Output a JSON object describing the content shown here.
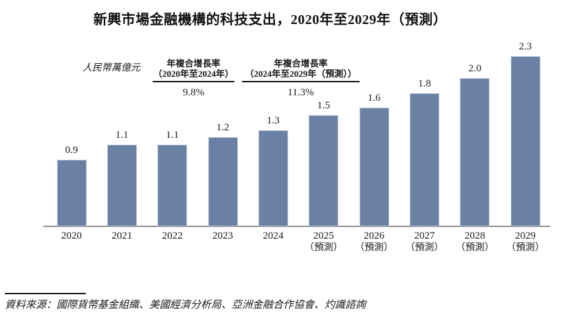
{
  "page": {
    "title": "新興市場金融機構的科技支出，2020年至2029年（預測）",
    "source": "資料來源：國際貨幣基金組織、美國經濟分析局、亞洲金融合作協會、灼識諮詢"
  },
  "chart_data": {
    "type": "bar",
    "title": "新興市場金融機構的科技支出，2020年至2029年（預測）",
    "ylabel": "人民幣萬億元",
    "categories": [
      "2020",
      "2021",
      "2022",
      "2023",
      "2024",
      "2025",
      "2026",
      "2027",
      "2028",
      "2029"
    ],
    "values": [
      0.9,
      1.1,
      1.1,
      1.2,
      1.3,
      1.5,
      1.6,
      1.8,
      2.0,
      2.3
    ],
    "data_labels": [
      "0.9",
      "1.1",
      "1.1",
      "1.2",
      "1.3",
      "1.5",
      "1.6",
      "1.8",
      "2.0",
      "2.3"
    ],
    "forecast_note": "（預測）",
    "forecast_start_index": 5,
    "ylim": [
      0,
      2.4
    ],
    "grid": false,
    "legend": false,
    "annotations": [
      {
        "line1": "年複合增長率",
        "line2": "（2020年至2024年）",
        "value": "9.8%"
      },
      {
        "line1": "年複合增長率",
        "line2": "（2024年至2029年（預測））",
        "value": "11.3%"
      }
    ],
    "colors": {
      "bar": "#6A80A4",
      "bar_border": "#B2BFD3",
      "axis": "#8F8F8F",
      "text": "#1A1A1A"
    }
  }
}
